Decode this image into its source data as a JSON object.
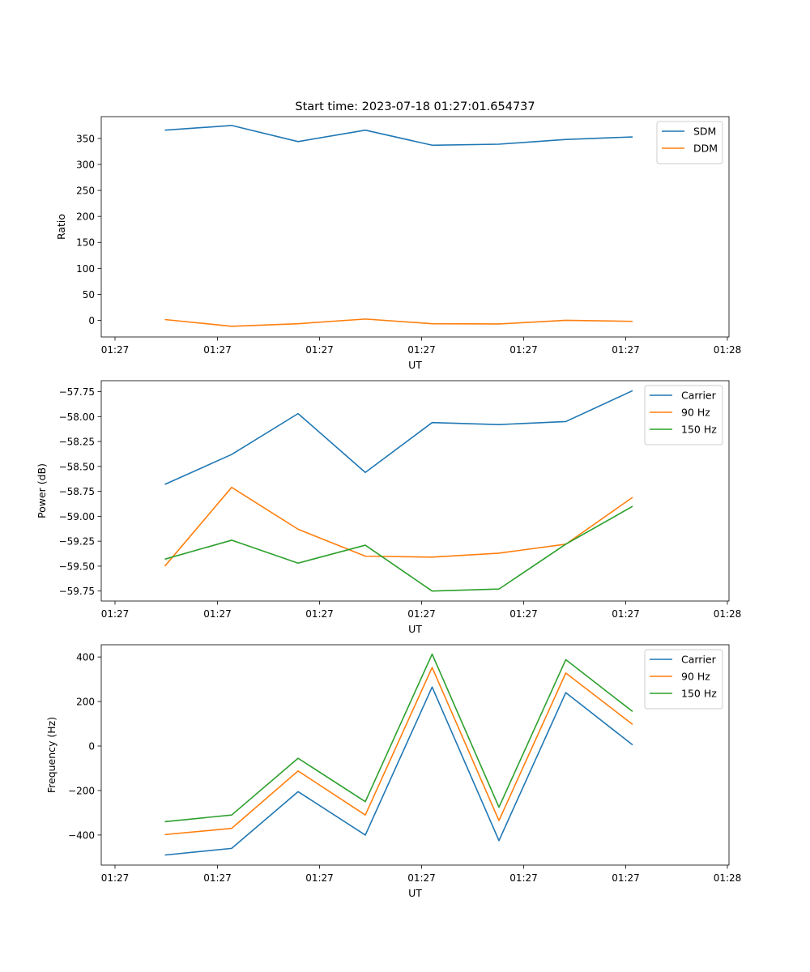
{
  "figure_title": "Start time: 2023-07-18 01:27:01.654737",
  "colors": {
    "blue": "#1f77b4",
    "orange": "#ff7f0e",
    "green": "#2ca02c"
  },
  "chart_data": [
    {
      "type": "line",
      "title": "Start time: 2023-07-18 01:27:01.654737",
      "xlabel": "UT",
      "ylabel": "Ratio",
      "x_tick_labels": [
        "01:27",
        "01:27",
        "01:27",
        "01:27",
        "01:27",
        "01:27",
        "01:28"
      ],
      "ylim": [
        -32,
        392
      ],
      "y_ticks": [
        0,
        50,
        100,
        150,
        200,
        250,
        300,
        350
      ],
      "legend_position": "top-right",
      "series": [
        {
          "name": "SDM",
          "color": "#1f77b4",
          "values": [
            366,
            375,
            344,
            366,
            337,
            339,
            348,
            353
          ]
        },
        {
          "name": "DDM",
          "color": "#ff7f0e",
          "values": [
            1.5,
            -11.5,
            -6.5,
            2.5,
            -6.5,
            -7,
            0,
            -2
          ]
        }
      ]
    },
    {
      "type": "line",
      "title": "",
      "xlabel": "UT",
      "ylabel": "Power (dB)",
      "x_tick_labels": [
        "01:27",
        "01:27",
        "01:27",
        "01:27",
        "01:27",
        "01:27",
        "01:28"
      ],
      "ylim": [
        -59.85,
        -57.64
      ],
      "y_ticks": [
        -57.75,
        -58.0,
        -58.25,
        -58.5,
        -58.75,
        -59.0,
        -59.25,
        -59.5,
        -59.75
      ],
      "y_tick_labels": [
        "−57.75",
        "−58.00",
        "−58.25",
        "−58.50",
        "−58.75",
        "−59.00",
        "−59.25",
        "−59.50",
        "−59.75"
      ],
      "legend_position": "top-right",
      "series": [
        {
          "name": "Carrier",
          "color": "#1f77b4",
          "values": [
            -58.68,
            -58.38,
            -57.97,
            -58.56,
            -58.06,
            -58.08,
            -58.05,
            -57.74
          ]
        },
        {
          "name": "90 Hz",
          "color": "#ff7f0e",
          "values": [
            -59.5,
            -58.71,
            -59.13,
            -59.4,
            -59.41,
            -59.37,
            -59.28,
            -58.81
          ]
        },
        {
          "name": "150 Hz",
          "color": "#2ca02c",
          "values": [
            -59.43,
            -59.24,
            -59.47,
            -59.29,
            -59.75,
            -59.73,
            -59.28,
            -58.9
          ]
        }
      ]
    },
    {
      "type": "line",
      "title": "",
      "xlabel": "UT",
      "ylabel": "Frequency (Hz)",
      "x_tick_labels": [
        "01:27",
        "01:27",
        "01:27",
        "01:27",
        "01:27",
        "01:27",
        "01:28"
      ],
      "ylim": [
        -535,
        455
      ],
      "y_ticks": [
        -400,
        -200,
        0,
        200,
        400
      ],
      "y_tick_labels": [
        "−400",
        "−200",
        "0",
        "200",
        "400"
      ],
      "legend_position": "top-right",
      "series": [
        {
          "name": "Carrier",
          "color": "#1f77b4",
          "values": [
            -490,
            -460,
            -205,
            -400,
            265,
            -425,
            240,
            5
          ]
        },
        {
          "name": "90 Hz",
          "color": "#ff7f0e",
          "values": [
            -398,
            -370,
            -112,
            -310,
            353,
            -335,
            328,
            97
          ]
        },
        {
          "name": "150 Hz",
          "color": "#2ca02c",
          "values": [
            -340,
            -310,
            -55,
            -250,
            413,
            -275,
            388,
            155
          ]
        }
      ]
    }
  ]
}
